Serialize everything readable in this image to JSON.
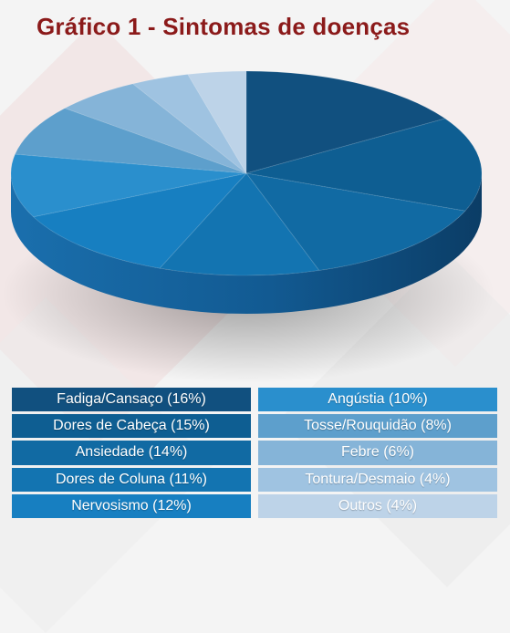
{
  "chart_data": {
    "type": "pie",
    "title": "Gráfico 1 - Sintomas de doenças",
    "slices": [
      {
        "label": "Fadiga/Cansaço (16%)",
        "value": 16,
        "color": "#11507f"
      },
      {
        "label": "Dores de Cabeça (15%)",
        "value": 15,
        "color": "#0e5e92"
      },
      {
        "label": "Ansiedade (14%)",
        "value": 14,
        "color": "#116aa3"
      },
      {
        "label": "Dores de Coluna (11%)",
        "value": 11,
        "color": "#1374b1"
      },
      {
        "label": "Nervosismo (12%)",
        "value": 12,
        "color": "#177fc1"
      },
      {
        "label": "Angústia (10%)",
        "value": 10,
        "color": "#2a8fcd"
      },
      {
        "label": "Tosse/Rouquidão (8%)",
        "value": 8,
        "color": "#5d9fcc"
      },
      {
        "label": "Febre (6%)",
        "value": 6,
        "color": "#85b4d8"
      },
      {
        "label": "Tontura/Desmaio (4%)",
        "value": 4,
        "color": "#9fc3e1"
      },
      {
        "label": "Outros (4%)",
        "value": 4,
        "color": "#bdd3e8"
      }
    ],
    "legend_placement": "bottom"
  }
}
